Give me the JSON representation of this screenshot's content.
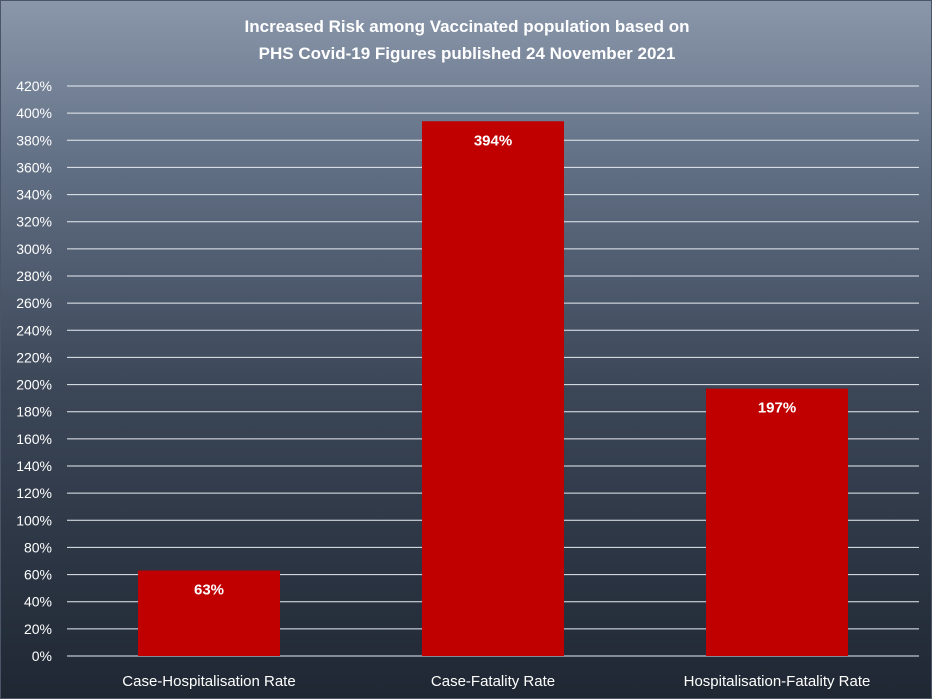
{
  "chart_data": {
    "type": "bar",
    "title_lines": [
      "Increased Risk among Vaccinated population based on",
      "PHS Covid-19 Figures published 24 November 2021"
    ],
    "categories": [
      "Case-Hospitalisation Rate",
      "Case-Fatality Rate",
      "Hospitalisation-Fatality Rate"
    ],
    "values": [
      63,
      394,
      197
    ],
    "data_labels": [
      "63%",
      "394%",
      "197%"
    ],
    "ylim": [
      0,
      420
    ],
    "y_step": 20,
    "y_tick_suffix": "%",
    "grid": true,
    "xlabel": "",
    "ylabel": "",
    "colors": {
      "bar": "#c00000",
      "grid": "#e8ecf2",
      "text": "#ffffff"
    }
  }
}
